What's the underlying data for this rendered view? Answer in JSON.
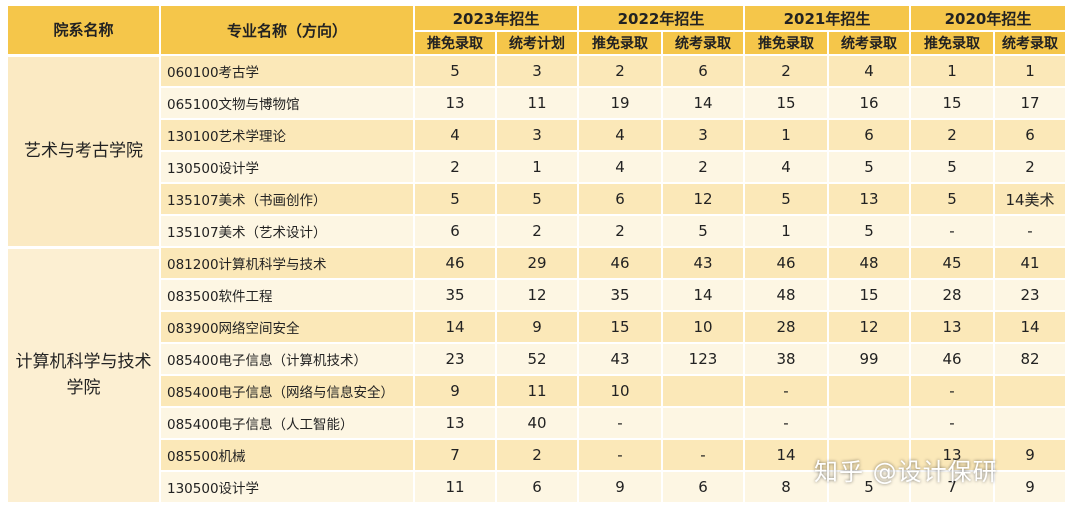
{
  "header": {
    "dept_col": "院系名称",
    "major_col": "专业名称（方向）",
    "years": [
      {
        "label": "2023年招生",
        "cols": [
          "推免录取",
          "统考计划"
        ]
      },
      {
        "label": "2022年招生",
        "cols": [
          "推免录取",
          "统考录取"
        ]
      },
      {
        "label": "2021年招生",
        "cols": [
          "推免录取",
          "统考录取"
        ]
      },
      {
        "label": "2020年招生",
        "cols": [
          "推免录取",
          "统考录取"
        ]
      }
    ]
  },
  "groups": [
    {
      "dept": "艺术与考古学院",
      "rows": [
        {
          "major": "060100考古学",
          "v": [
            "5",
            "3",
            "2",
            "6",
            "2",
            "4",
            "1",
            "1"
          ]
        },
        {
          "major": "065100文物与博物馆",
          "v": [
            "13",
            "11",
            "19",
            "14",
            "15",
            "16",
            "15",
            "17"
          ]
        },
        {
          "major": "130100艺术学理论",
          "v": [
            "4",
            "3",
            "4",
            "3",
            "1",
            "6",
            "2",
            "6"
          ]
        },
        {
          "major": "130500设计学",
          "v": [
            "2",
            "1",
            "4",
            "2",
            "4",
            "5",
            "5",
            "2"
          ]
        },
        {
          "major": "135107美术（书画创作）",
          "v": [
            "5",
            "5",
            "6",
            "12",
            "5",
            "13",
            "5",
            "14美术"
          ]
        },
        {
          "major": "135107美术（艺术设计）",
          "v": [
            "6",
            "2",
            "2",
            "5",
            "1",
            "5",
            "-",
            "-"
          ]
        }
      ]
    },
    {
      "dept": "计算机科学与技术学院",
      "rows": [
        {
          "major": "081200计算机科学与技术",
          "v": [
            "46",
            "29",
            "46",
            "43",
            "46",
            "48",
            "45",
            "41"
          ]
        },
        {
          "major": "083500软件工程",
          "v": [
            "35",
            "12",
            "35",
            "14",
            "48",
            "15",
            "28",
            "23"
          ]
        },
        {
          "major": "083900网络空间安全",
          "v": [
            "14",
            "9",
            "15",
            "10",
            "28",
            "12",
            "13",
            "14"
          ]
        },
        {
          "major": "085400电子信息（计算机技术）",
          "v": [
            "23",
            "52",
            "43",
            "123",
            "38",
            "99",
            "46",
            "82"
          ]
        },
        {
          "major": "085400电子信息（网络与信息安全）",
          "v": [
            "9",
            "11",
            "10",
            "",
            "-",
            "",
            "-",
            ""
          ]
        },
        {
          "major": "085400电子信息（人工智能）",
          "v": [
            "13",
            "40",
            "-",
            "",
            "-",
            "",
            "-",
            ""
          ]
        },
        {
          "major": "085500机械",
          "v": [
            "7",
            "2",
            "-",
            "-",
            "14",
            "",
            "13",
            "9"
          ]
        },
        {
          "major": "130500设计学",
          "v": [
            "11",
            "6",
            "9",
            "6",
            "8",
            "5",
            "7",
            "9"
          ]
        }
      ]
    }
  ],
  "watermark": "知乎 @设计保研"
}
